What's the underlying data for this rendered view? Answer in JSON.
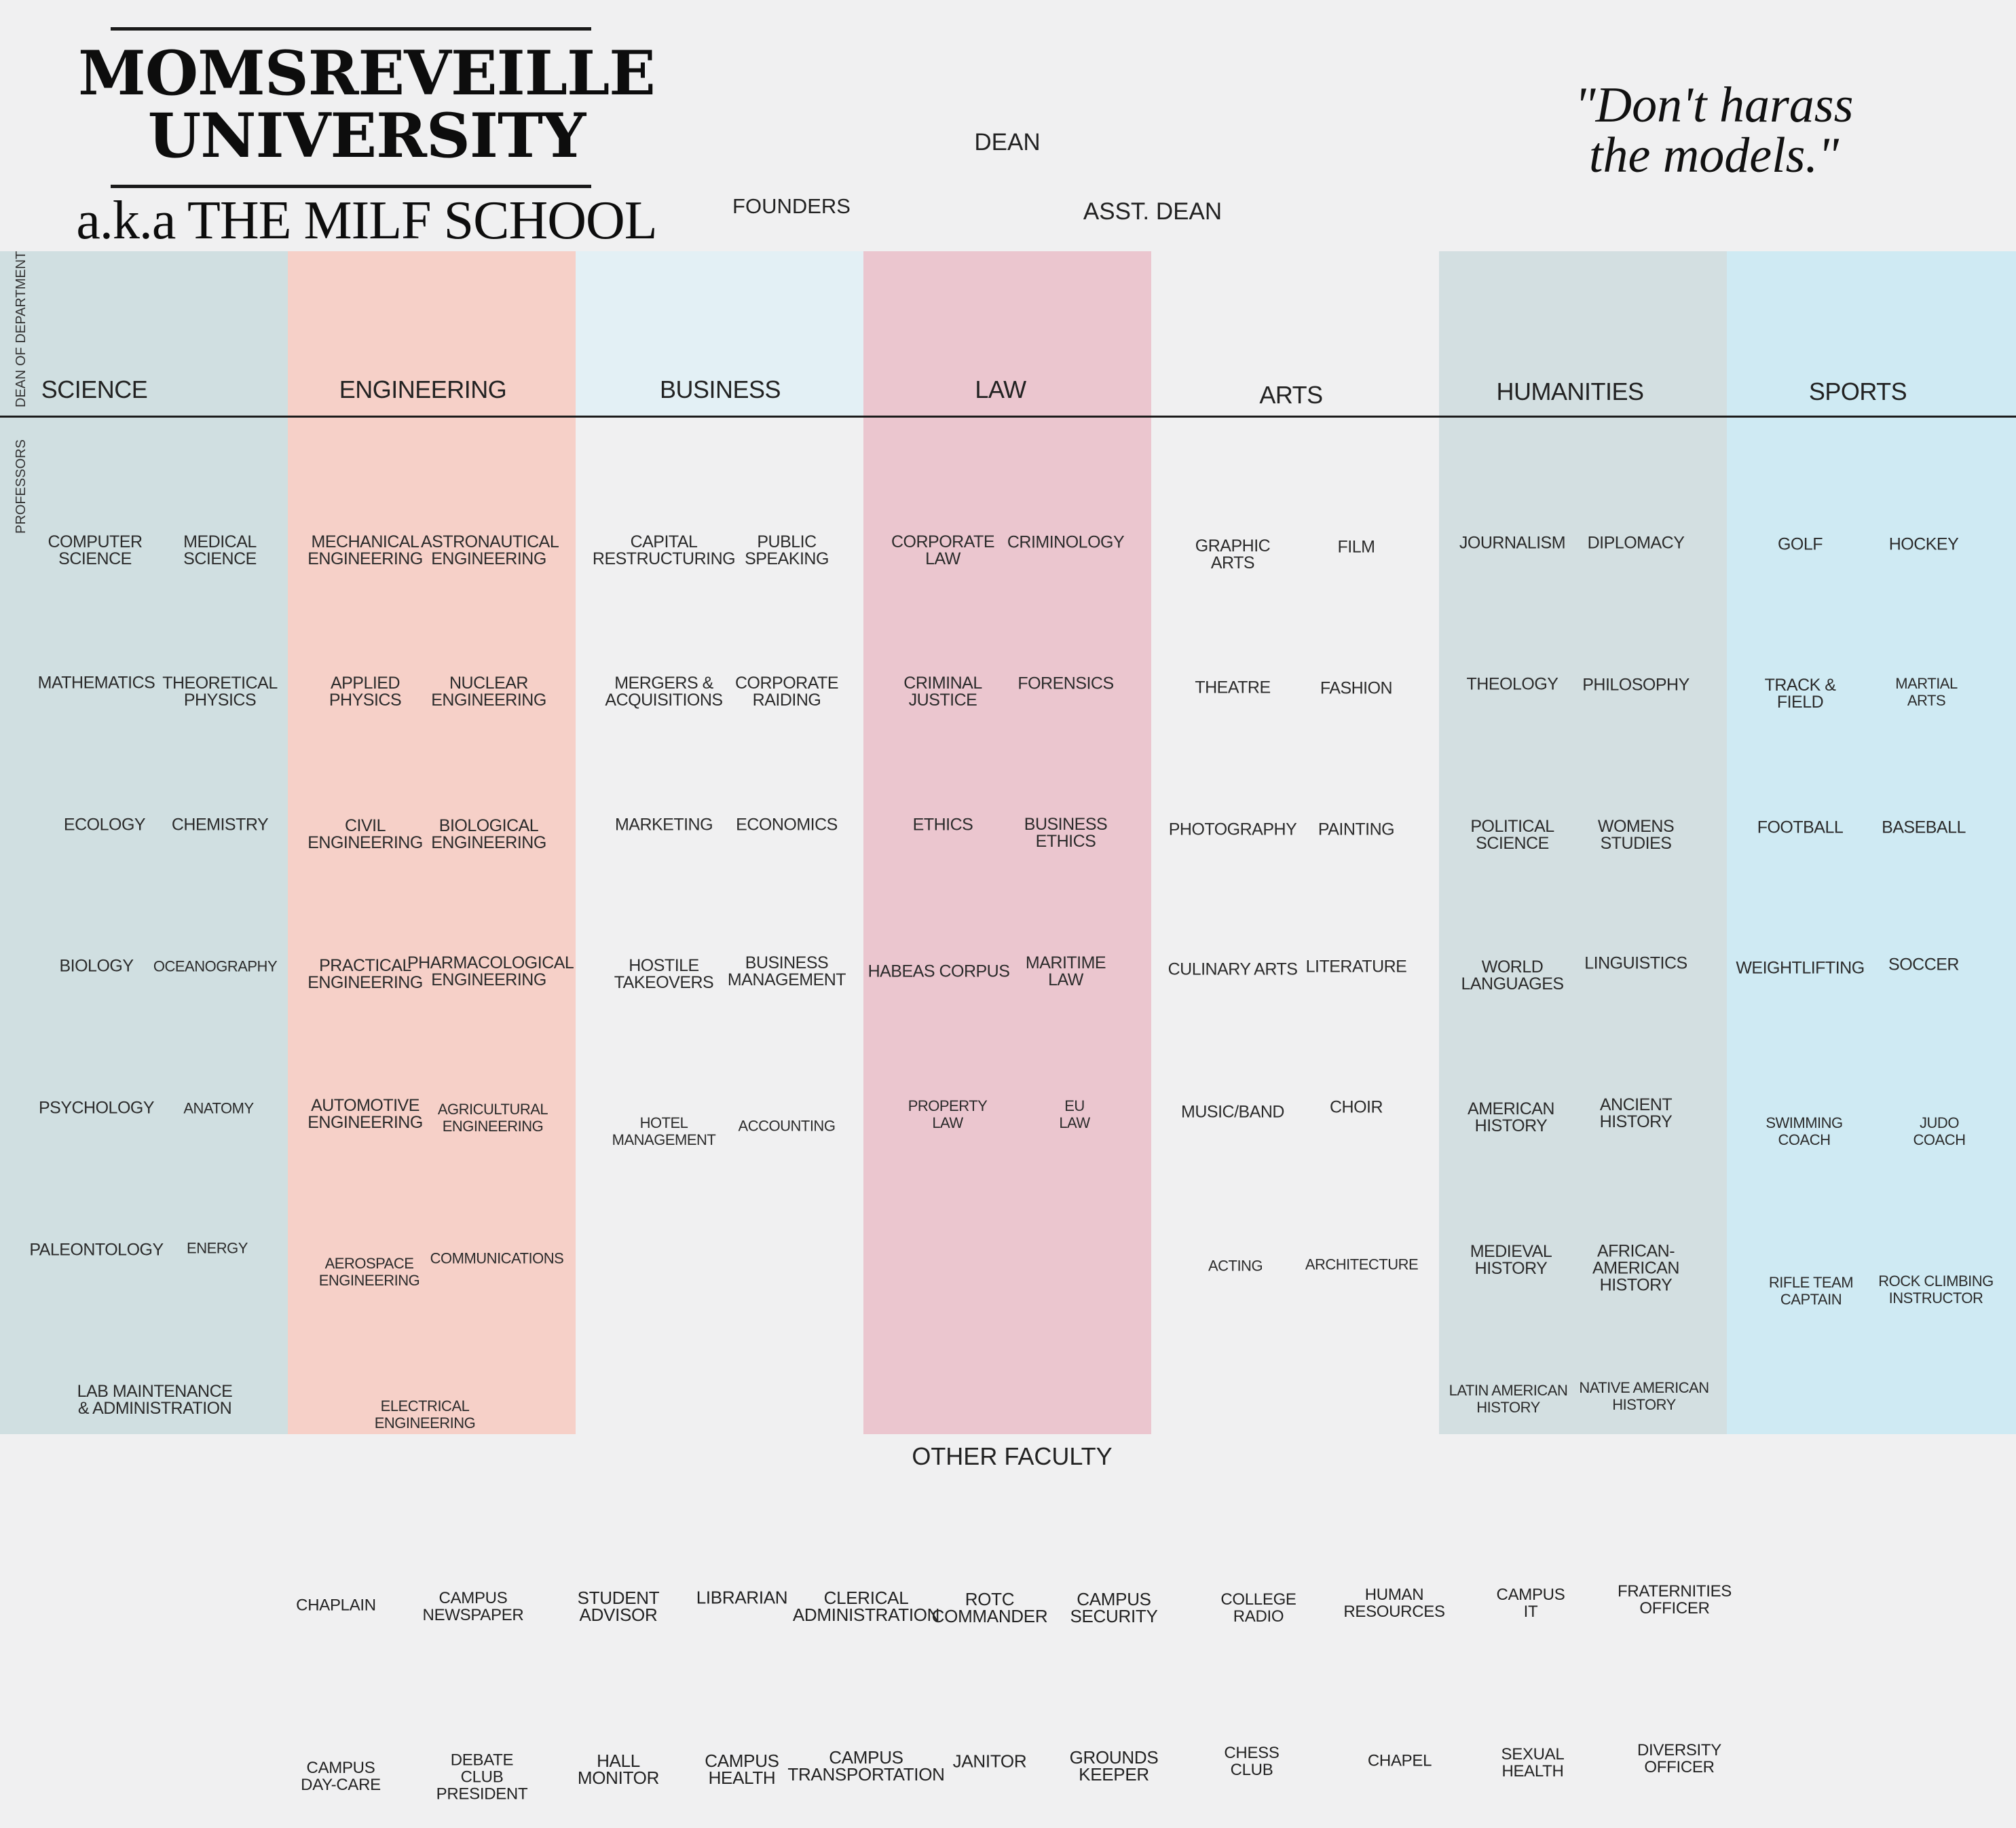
{
  "header": {
    "title": "MOMSREVEILLE\nUNIVERSITY",
    "subtitle": "a.k.a THE MILF SCHOOL",
    "quote": "\"Don't harass\nthe models.\"",
    "dean": "DEAN",
    "founders": "FOUNDERS",
    "asst_dean": "ASST. DEAN"
  },
  "side_labels": {
    "dean_of_department": "DEAN OF DEPARTMENT",
    "professors": "PROFESSORS"
  },
  "departments": [
    {
      "name": "SCIENCE",
      "color": "#d0dfe1",
      "courses": [
        "COMPUTER\nSCIENCE",
        "MEDICAL\nSCIENCE",
        "MATHEMATICS",
        "THEORETICAL\nPHYSICS",
        "ECOLOGY",
        "CHEMISTRY",
        "BIOLOGY",
        "OCEANOGRAPHY",
        "PSYCHOLOGY",
        "ANATOMY",
        "PALEONTOLOGY",
        "ENERGY",
        "LAB MAINTENANCE\n& ADMINISTRATION"
      ]
    },
    {
      "name": "ENGINEERING",
      "color": "#f6d0c8",
      "courses": [
        "MECHANICAL\nENGINEERING",
        "ASTRONAUTICAL\nENGINEERING",
        "APPLIED\nPHYSICS",
        "NUCLEAR\nENGINEERING",
        "CIVIL\nENGINEERING",
        "BIOLOGICAL\nENGINEERING",
        "PRACTICAL\nENGINEERING",
        "PHARMACOLOGICAL\nENGINEERING",
        "AUTOMOTIVE\nENGINEERING",
        "AGRICULTURAL\nENGINEERING",
        "AEROSPACE\nENGINEERING",
        "COMMUNICATIONS",
        "ELECTRICAL\nENGINEERING"
      ]
    },
    {
      "name": "BUSINESS",
      "color": "#e3f0f5",
      "courses": [
        "CAPITAL\nRESTRUCTURING",
        "PUBLIC\nSPEAKING",
        "MERGERS &\nACQUISITIONS",
        "CORPORATE\nRAIDING",
        "MARKETING",
        "ECONOMICS",
        "HOSTILE\nTAKEOVERS",
        "BUSINESS\nMANAGEMENT",
        "HOTEL\nMANAGEMENT",
        "ACCOUNTING"
      ]
    },
    {
      "name": "LAW",
      "color": "#ebc6cf",
      "courses": [
        "CORPORATE\nLAW",
        "CRIMINOLOGY",
        "CRIMINAL\nJUSTICE",
        "FORENSICS",
        "ETHICS",
        "BUSINESS\nETHICS",
        "HABEAS CORPUS",
        "MARITIME\nLAW",
        "PROPERTY\nLAW",
        "EU\nLAW"
      ]
    },
    {
      "name": "ARTS",
      "color": "#f0f0f1",
      "courses": [
        "GRAPHIC\nARTS",
        "FILM",
        "THEATRE",
        "FASHION",
        "PHOTOGRAPHY",
        "PAINTING",
        "CULINARY ARTS",
        "LITERATURE",
        "MUSIC/BAND",
        "CHOIR",
        "ACTING",
        "ARCHITECTURE"
      ]
    },
    {
      "name": "HUMANITIES",
      "color": "#d3dfe1",
      "courses": [
        "JOURNALISM",
        "DIPLOMACY",
        "THEOLOGY",
        "PHILOSOPHY",
        "POLITICAL\nSCIENCE",
        "WOMENS\nSTUDIES",
        "WORLD\nLANGUAGES",
        "LINGUISTICS",
        "AMERICAN\nHISTORY",
        "ANCIENT\nHISTORY",
        "MEDIEVAL\nHISTORY",
        "AFRICAN-\nAMERICAN\nHISTORY",
        "LATIN AMERICAN\nHISTORY",
        "NATIVE AMERICAN\nHISTORY"
      ]
    },
    {
      "name": "SPORTS",
      "color": "#cfeaf3",
      "courses": [
        "GOLF",
        "HOCKEY",
        "TRACK &\nFIELD",
        "MARTIAL\nARTS",
        "FOOTBALL",
        "BASEBALL",
        "WEIGHTLIFTING",
        "SOCCER",
        "SWIMMING\nCOACH",
        "JUDO\nCOACH",
        "RIFLE TEAM\nCAPTAIN",
        "ROCK CLIMBING\nINSTRUCTOR"
      ]
    }
  ],
  "other_faculty": {
    "title": "OTHER FACULTY",
    "row1": [
      "CHAPLAIN",
      "CAMPUS\nNEWSPAPER",
      "STUDENT\nADVISOR",
      "LIBRARIAN",
      "CLERICAL\nADMINISTRATION",
      "ROTC\nCOMMANDER",
      "CAMPUS\nSECURITY",
      "COLLEGE\nRADIO",
      "HUMAN\nRESOURCES",
      "CAMPUS\nIT",
      "FRATERNITIES\nOFFICER"
    ],
    "row2": [
      "CAMPUS\nDAY-CARE",
      "DEBATE\nCLUB\nPRESIDENT",
      "HALL\nMONITOR",
      "CAMPUS\nHEALTH",
      "CAMPUS\nTRANSPORTATION",
      "JANITOR",
      "GROUNDS\nKEEPER",
      "CHESS\nCLUB",
      "CHAPEL",
      "SEXUAL\nHEALTH",
      "DIVERSITY\nOFFICER"
    ]
  }
}
